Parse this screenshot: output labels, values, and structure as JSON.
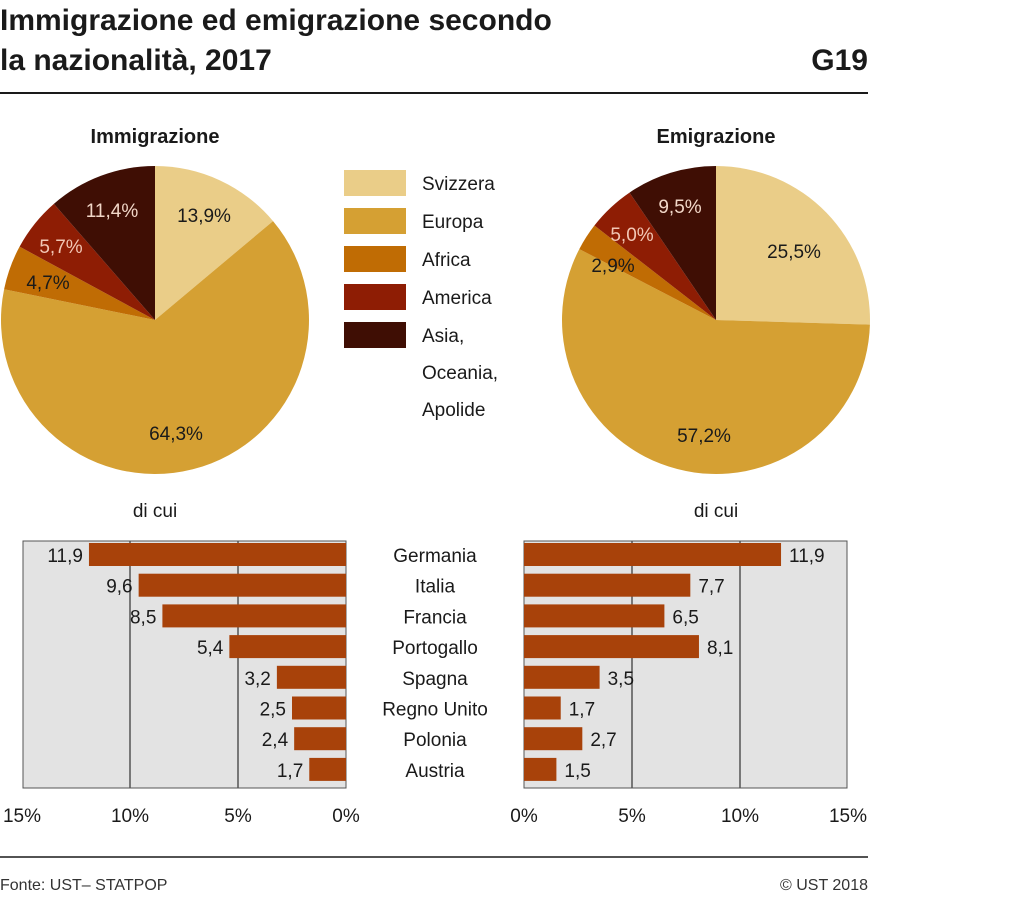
{
  "header": {
    "title_line1": "Immigrazione ed emigrazione secondo",
    "title_line2": "la nazionalità, 2017",
    "code": "G19"
  },
  "footer": {
    "source": "Fonte: UST– STATPOP",
    "copyright": "© UST 2018"
  },
  "colors": {
    "Svizzera": "#eacd88",
    "Europa": "#d5a033",
    "Africa": "#c06c04",
    "America": "#8e1d04",
    "Asia": "#3f0e04",
    "bar": "#a8420a",
    "panel": "#e3e3e3",
    "grid": "#555555"
  },
  "chart_data": [
    {
      "type": "pie",
      "title": "Immigrazione",
      "labels": [
        "Svizzera",
        "Europa",
        "Africa",
        "America",
        "Asia, Oceania, Apolide"
      ],
      "values": [
        13.9,
        64.3,
        4.7,
        5.7,
        11.4
      ],
      "value_labels": [
        "13,9%",
        "64,3%",
        "4,7%",
        "5,7%",
        "11,4%"
      ]
    },
    {
      "type": "pie",
      "title": "Emigrazione",
      "labels": [
        "Svizzera",
        "Europa",
        "Africa",
        "America",
        "Asia, Oceania, Apolide"
      ],
      "values": [
        25.5,
        57.2,
        2.9,
        5.0,
        9.5
      ],
      "value_labels": [
        "25,5%",
        "57,2%",
        "2,9%",
        "5,0%",
        "9,5%"
      ]
    },
    {
      "type": "bar",
      "orientation": "horizontal",
      "subtitle": "di cui",
      "categories": [
        "Germania",
        "Italia",
        "Francia",
        "Portogallo",
        "Spagna",
        "Regno Unito",
        "Polonia",
        "Austria"
      ],
      "values": [
        11.9,
        9.6,
        8.5,
        5.4,
        3.2,
        2.5,
        2.4,
        1.7
      ],
      "value_labels": [
        "11,9",
        "9,6",
        "8,5",
        "5,4",
        "3,2",
        "2,5",
        "2,4",
        "1,7"
      ],
      "xlim": [
        0,
        15
      ],
      "reversed": true,
      "ticks": [
        "15%",
        "10%",
        "5%",
        "0%"
      ]
    },
    {
      "type": "bar",
      "orientation": "horizontal",
      "subtitle": "di cui",
      "categories": [
        "Germania",
        "Italia",
        "Francia",
        "Portogallo",
        "Spagna",
        "Regno Unito",
        "Polonia",
        "Austria"
      ],
      "values": [
        11.9,
        7.7,
        6.5,
        8.1,
        3.5,
        1.7,
        2.7,
        1.5
      ],
      "value_labels": [
        "11,9",
        "7,7",
        "6,5",
        "8,1",
        "3,5",
        "1,7",
        "2,7",
        "1,5"
      ],
      "xlim": [
        0,
        15
      ],
      "ticks": [
        "0%",
        "5%",
        "10%",
        "15%"
      ]
    }
  ],
  "legend": {
    "items": [
      {
        "key": "Svizzera",
        "lines": [
          "Svizzera"
        ]
      },
      {
        "key": "Europa",
        "lines": [
          "Europa"
        ]
      },
      {
        "key": "Africa",
        "lines": [
          "Africa"
        ]
      },
      {
        "key": "America",
        "lines": [
          "America"
        ]
      },
      {
        "key": "Asia",
        "lines": [
          "Asia,",
          "Oceania,",
          "Apolide"
        ]
      }
    ]
  }
}
